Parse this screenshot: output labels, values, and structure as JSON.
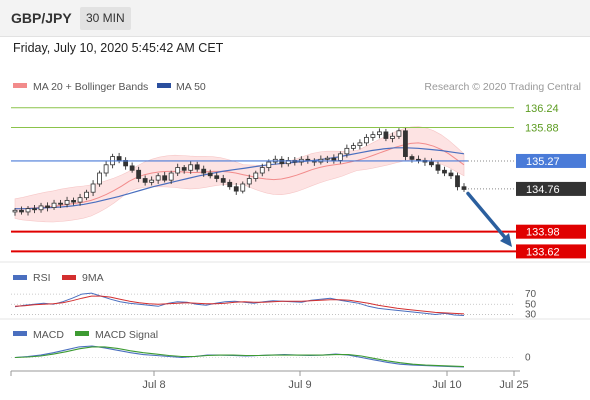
{
  "header": {
    "pair": "GBP/JPY",
    "timeframe": "30 MIN"
  },
  "timestamp": "Friday, July 10, 2020 5:45:42 AM CET",
  "legend": {
    "ma20_bb": "MA 20 + Bollinger Bands",
    "ma50": "MA 50",
    "copyright": "Research © 2020 Trading Central"
  },
  "colors": {
    "candle_up": "#333333",
    "candle_down": "#333333",
    "bollinger_fill": "#fde3e3",
    "ma20": "#f28b8b",
    "ma50": "#4a6fbf",
    "resistance": "#8bc34a",
    "pivot": "#4a7bd8",
    "support": "#e00000",
    "arrow": "#2b5f9e",
    "last_price_tag": "#333333"
  },
  "chart_data": [
    {
      "type": "candlestick",
      "name": "price",
      "x_ticks": [
        "Jul 8",
        "Jul 9",
        "Jul 10",
        "Jul 25"
      ],
      "ylim": [
        133.5,
        136.4
      ],
      "levels": [
        {
          "label": "136.24",
          "value": 136.24,
          "kind": "resistance"
        },
        {
          "label": "135.88",
          "value": 135.88,
          "kind": "resistance"
        },
        {
          "label": "135.27",
          "value": 135.27,
          "kind": "pivot"
        },
        {
          "label": "134.76",
          "value": 134.76,
          "kind": "last"
        },
        {
          "label": "133.98",
          "value": 133.98,
          "kind": "support"
        },
        {
          "label": "133.62",
          "value": 133.62,
          "kind": "support"
        }
      ],
      "close": [
        134.37,
        134.34,
        134.4,
        134.38,
        134.45,
        134.42,
        134.5,
        134.48,
        134.55,
        134.52,
        134.6,
        134.7,
        134.85,
        135.05,
        135.2,
        135.35,
        135.28,
        135.18,
        135.1,
        134.95,
        134.88,
        134.92,
        135.0,
        134.92,
        135.05,
        135.15,
        135.1,
        135.2,
        135.12,
        135.05,
        135.0,
        134.95,
        134.88,
        134.8,
        134.72,
        134.85,
        134.95,
        135.05,
        135.15,
        135.25,
        135.3,
        135.22,
        135.28,
        135.25,
        135.3,
        135.27,
        135.25,
        135.3,
        135.32,
        135.28,
        135.4,
        135.5,
        135.55,
        135.6,
        135.7,
        135.75,
        135.8,
        135.68,
        135.72,
        135.82,
        135.35,
        135.3,
        135.28,
        135.25,
        135.2,
        135.1,
        135.05,
        135.0,
        134.8,
        134.75
      ],
      "ma20": [
        134.4,
        134.4,
        134.41,
        134.42,
        134.43,
        134.44,
        134.46,
        134.48,
        134.5,
        134.52,
        134.55,
        134.6,
        134.66,
        134.73,
        134.81,
        134.9,
        134.97,
        135.02,
        135.05,
        135.07,
        135.08,
        135.08,
        135.07,
        135.06,
        135.06,
        135.07,
        135.08,
        135.08,
        135.07,
        135.05,
        135.02,
        134.99,
        134.96,
        134.94,
        134.93,
        134.94,
        134.97,
        135.01,
        135.06,
        135.11,
        135.15,
        135.18,
        135.2,
        135.22,
        135.25,
        135.28,
        135.32,
        135.37,
        135.42,
        135.47,
        135.52,
        135.56,
        135.59,
        135.6,
        135.58,
        135.54,
        135.48,
        135.4,
        135.3,
        135.2
      ],
      "ma50": [
        134.4,
        134.4,
        134.41,
        134.42,
        134.43,
        134.45,
        134.48,
        134.52,
        134.57,
        134.62,
        134.68,
        134.74,
        134.8,
        134.85,
        134.9,
        134.95,
        135.0,
        135.04,
        135.08,
        135.11,
        135.14,
        135.17,
        135.2,
        135.22,
        135.24,
        135.26,
        135.28,
        135.31,
        135.34,
        135.38,
        135.42,
        135.46,
        135.49,
        135.51,
        135.51,
        135.5,
        135.48,
        135.46,
        135.43,
        135.4
      ]
    },
    {
      "type": "line",
      "name": "RSI panel",
      "legend": [
        "RSI",
        "9MA"
      ],
      "levels": [
        "70",
        "50",
        "30"
      ],
      "series": [
        {
          "key": "rsi",
          "color": "#4a6fbf",
          "values": [
            45,
            48,
            50,
            52,
            50,
            55,
            62,
            70,
            72,
            66,
            60,
            55,
            52,
            50,
            48,
            46,
            52,
            55,
            54,
            50,
            48,
            52,
            55,
            56,
            54,
            52,
            55,
            57,
            56,
            55,
            54,
            58,
            60,
            62,
            58,
            55,
            52,
            46,
            42,
            40,
            38,
            36,
            34,
            32,
            30,
            32,
            29,
            28
          ]
        },
        {
          "key": "ma9",
          "color": "#d32f2f",
          "values": [
            46,
            47,
            49,
            50,
            51,
            53,
            57,
            62,
            66,
            66,
            64,
            60,
            56,
            53,
            51,
            50,
            51,
            52,
            53,
            52,
            51,
            51,
            52,
            54,
            55,
            54,
            54,
            55,
            56,
            56,
            56,
            57,
            58,
            59,
            59,
            58,
            55,
            52,
            48,
            45,
            42,
            40,
            38,
            36,
            34,
            33,
            32,
            31
          ]
        }
      ]
    },
    {
      "type": "line",
      "name": "MACD panel",
      "legend": [
        "MACD",
        "MACD Signal"
      ],
      "levels": [
        "0"
      ],
      "series": [
        {
          "key": "macd",
          "color": "#4a6fbf",
          "values": [
            0.0,
            0.02,
            0.05,
            0.1,
            0.16,
            0.22,
            0.24,
            0.2,
            0.15,
            0.1,
            0.06,
            0.04,
            0.02,
            0.0,
            0.02,
            0.05,
            0.05,
            0.04,
            0.03,
            0.04,
            0.05,
            0.06,
            0.05,
            0.04,
            0.05,
            0.07,
            0.05,
            0.0,
            -0.05,
            -0.1,
            -0.14,
            -0.16,
            -0.17,
            -0.18,
            -0.19,
            -0.2
          ]
        },
        {
          "key": "signal",
          "color": "#3d9b32",
          "values": [
            0.0,
            0.01,
            0.03,
            0.07,
            0.12,
            0.18,
            0.22,
            0.22,
            0.19,
            0.14,
            0.1,
            0.07,
            0.04,
            0.02,
            0.02,
            0.04,
            0.05,
            0.05,
            0.04,
            0.04,
            0.05,
            0.05,
            0.05,
            0.05,
            0.05,
            0.06,
            0.06,
            0.03,
            -0.02,
            -0.07,
            -0.11,
            -0.14,
            -0.16,
            -0.17,
            -0.18,
            -0.19
          ]
        }
      ]
    }
  ]
}
